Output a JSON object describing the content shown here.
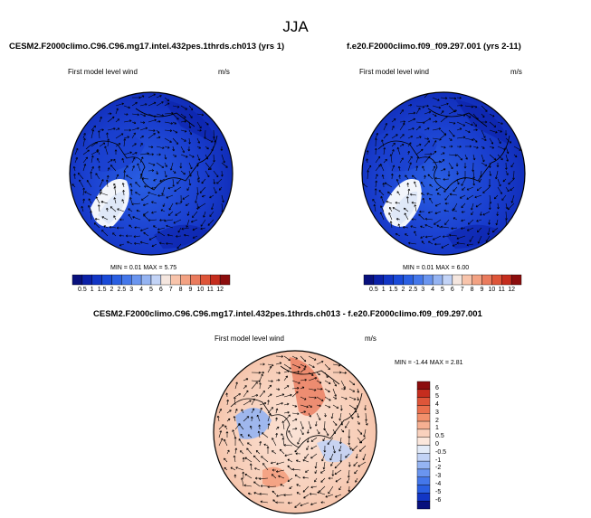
{
  "season": "JJA",
  "panels": [
    {
      "title": "CESM2.F2000climo.C96.C96.mg17.intel.432pes.1thrds.ch013 (yrs 1)",
      "variable": "First model level wind",
      "units": "m/s",
      "min_label": "MIN =",
      "min": "0.01",
      "max_label": "MAX =",
      "max": "5.75"
    },
    {
      "title": "f.e20.F2000climo.f09_f09.297.001 (yrs 2-11)",
      "variable": "First model level wind",
      "units": "m/s",
      "min_label": "MIN =",
      "min": "0.01",
      "max_label": "MAX =",
      "max": "6.00"
    },
    {
      "title": "CESM2.F2000climo.C96.C96.mg17.intel.432pes.1thrds.ch013 - f.e20.F2000climo.f09_f09.297.001",
      "variable": "First model level wind",
      "units": "m/s",
      "min_label": "MIN =",
      "min": "-1.44",
      "max_label": "MAX =",
      "max": "2.81"
    }
  ],
  "abs_colorbar": {
    "labels": [
      "0.5",
      "1",
      "1.5",
      "2",
      "2.5",
      "3",
      "4",
      "5",
      "6",
      "7",
      "8",
      "9",
      "10",
      "11",
      "12"
    ],
    "colors": [
      "#08107d",
      "#0b21a8",
      "#1236c5",
      "#1a4ad8",
      "#2a5fe2",
      "#4477ea",
      "#6a95ef",
      "#95b4f2",
      "#c2d3f6",
      "#f4e6df",
      "#f8c4ab",
      "#f3a283",
      "#ea7b5d",
      "#de5539",
      "#c52d1e",
      "#8c0d0d"
    ]
  },
  "diff_colorbar": {
    "labels": [
      "6",
      "5",
      "4",
      "3",
      "2",
      "1",
      "0.5",
      "0",
      "-0.5",
      "-1",
      "-2",
      "-3",
      "-4",
      "-5",
      "-6"
    ],
    "colors": [
      "#8c0d0d",
      "#c52d1e",
      "#de5539",
      "#ea6f4d",
      "#f2906c",
      "#f6b092",
      "#f9d1bd",
      "#fbe7dc",
      "#e3ebf8",
      "#c2d3f6",
      "#95b4f2",
      "#6a95ef",
      "#4477ea",
      "#2a5fe2",
      "#1236c5",
      "#08107d"
    ]
  }
}
